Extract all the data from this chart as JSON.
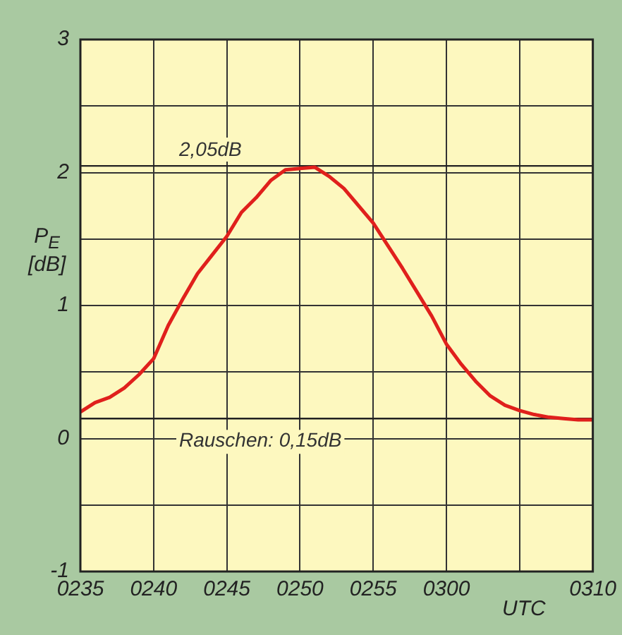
{
  "chart_data": {
    "type": "line",
    "ylabel": "P$_{E}$ [dB]",
    "xlabel": "UTC",
    "categories": [
      "0235",
      null,
      null,
      null,
      null,
      "0240",
      null,
      null,
      null,
      null,
      "0245",
      null,
      null,
      null,
      null,
      "0250",
      null,
      null,
      null,
      null,
      "0255",
      null,
      null,
      null,
      null,
      "0300",
      null,
      null,
      null,
      null,
      null,
      null,
      null,
      null,
      null,
      "0310"
    ],
    "series": [
      {
        "color": "#e0201c",
        "values": [
          0.2,
          0.27,
          0.31,
          0.38,
          0.48,
          0.6,
          0.85,
          1.05,
          1.24,
          1.38,
          1.52,
          1.7,
          1.81,
          1.94,
          2.02,
          2.03,
          2.04,
          1.97,
          1.88,
          1.75,
          1.62,
          1.45,
          1.28,
          1.1,
          0.92,
          0.71,
          0.56,
          0.43,
          0.32,
          0.25,
          0.21,
          0.18,
          0.16,
          0.15,
          0.14,
          0.14
        ]
      }
    ],
    "ylim": [
      -1,
      3
    ],
    "yticks": [
      -1,
      {
        "value": -0.5,
        "label": null
      },
      0,
      {
        "value": 0.5,
        "label": null
      },
      1,
      {
        "value": 1.5,
        "label": null
      },
      2,
      {
        "value": 2.5,
        "label": null
      },
      3
    ],
    "ref_lines": [
      {
        "axis": "y",
        "value": 2.05,
        "label": "2,05dB"
      },
      {
        "axis": "y",
        "value": 0.15,
        "label": "Rauschen: 0,15dB"
      }
    ],
    "grid": true,
    "legend": false,
    "marker": "none",
    "line_style": "solid"
  }
}
